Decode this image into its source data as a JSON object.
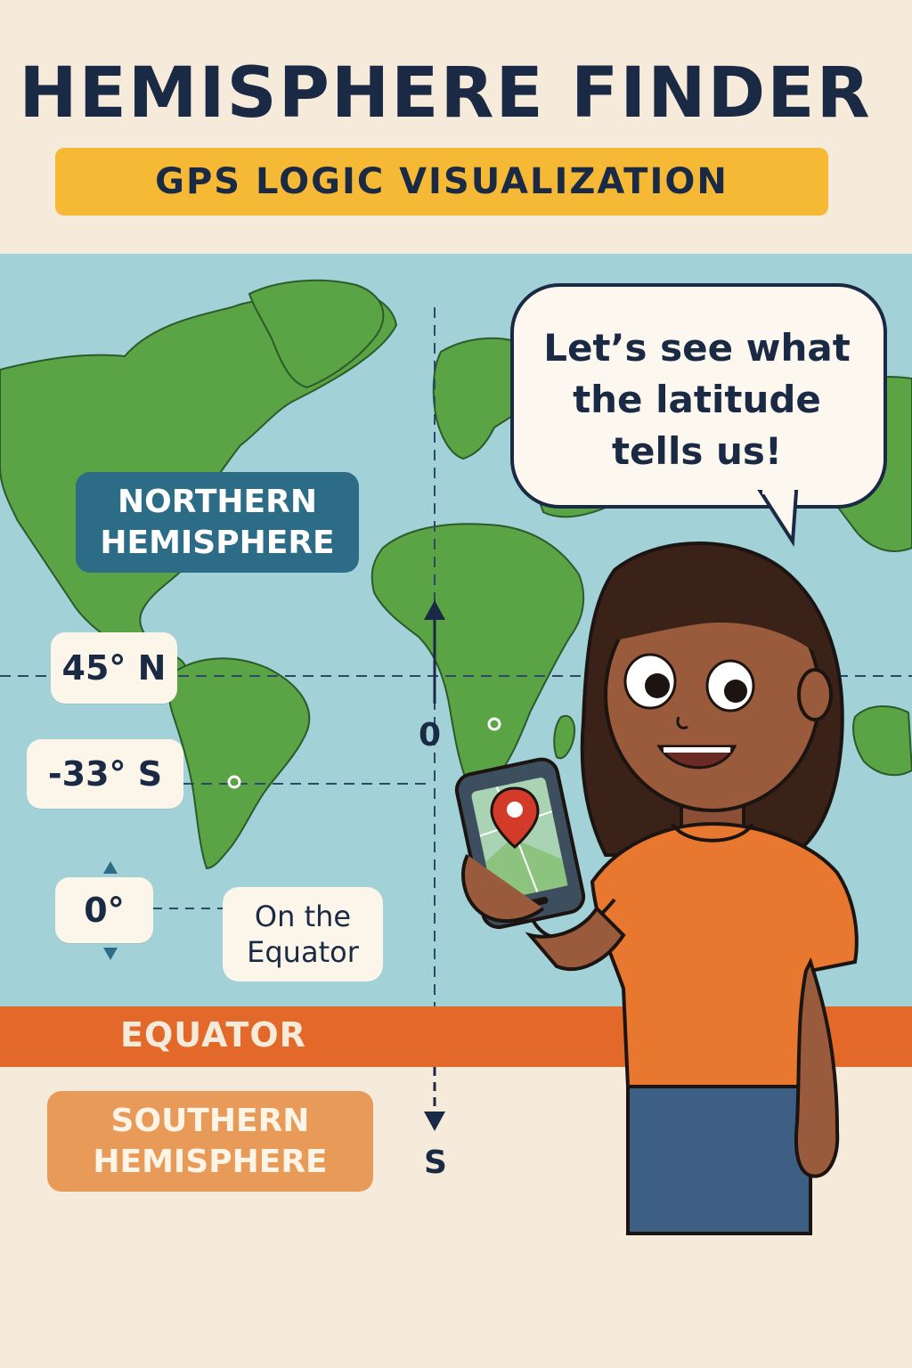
{
  "title": "HEMISPHERE FINDER",
  "subtitle": "GPS LOGIC VISUALIZATION",
  "speech_bubble": "Let’s see what the latitude tells us!",
  "labels": {
    "northern": "NORTHERN HEMISPHERE",
    "southern": "SOUTHERN HEMISPHERE",
    "equator": "EQUATOR"
  },
  "latitudes": {
    "north": "45° N",
    "south": "-33° S",
    "zero": "0°",
    "zero_note": "On the Equator"
  },
  "axis": {
    "center": "0",
    "bottom": "S"
  },
  "colors": {
    "background": "#f6eadb",
    "ocean": "#a2d2d8",
    "land": "#5aa445",
    "title": "#1b2a44",
    "subtitle_bar": "#f5b935",
    "northern_box": "#2c6c86",
    "southern_box": "#e89a58",
    "equator_band": "#e2692a",
    "shirt": "#e8782f"
  },
  "icons": [
    "map-pin-icon",
    "phone-icon",
    "up-arrow-icon",
    "down-arrow-icon"
  ]
}
